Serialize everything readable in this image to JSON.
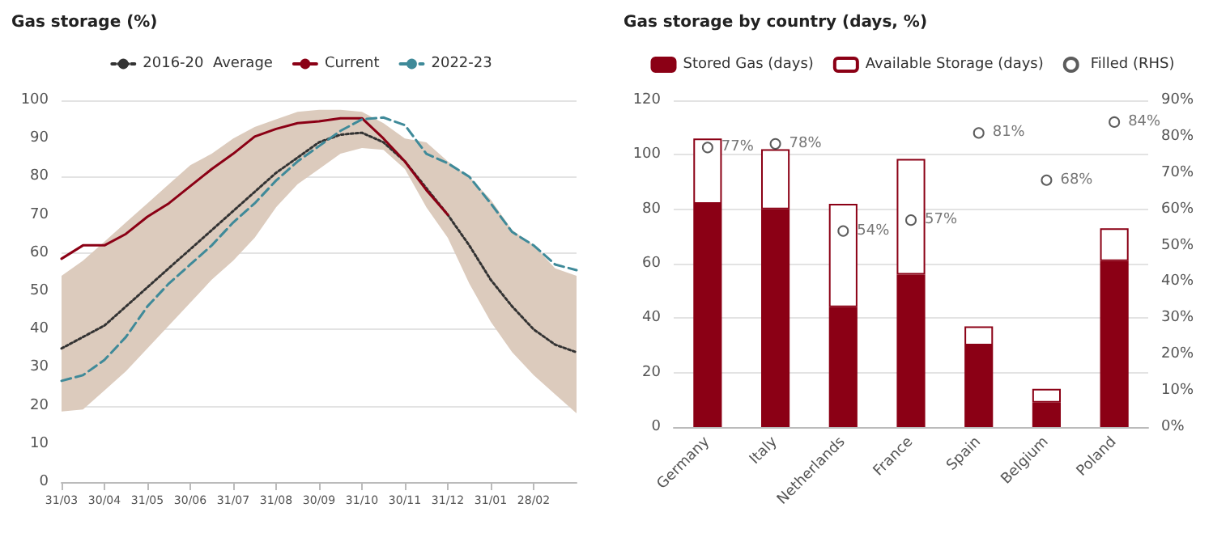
{
  "chart_data": [
    {
      "type": "line",
      "title": "Gas storage (%)",
      "categories": [
        "31/03",
        null,
        "30/04",
        null,
        "31/05",
        null,
        "30/06",
        null,
        "31/07",
        null,
        "31/08",
        null,
        "30/09",
        null,
        "31/10",
        null,
        "30/11",
        null,
        "31/12",
        null,
        "31/01",
        null,
        "28/02",
        null,
        null
      ],
      "ylim": [
        0,
        100
      ],
      "yticks": [
        0,
        10,
        20,
        30,
        40,
        50,
        60,
        70,
        80,
        90,
        100
      ],
      "grid": "y",
      "legend": "top",
      "marker": "none",
      "series": [
        {
          "name": "2016-20  Average",
          "color": "#333333",
          "line_style": "dotted",
          "values": [
            35,
            38,
            41,
            46,
            51,
            56,
            61,
            66,
            71,
            76,
            81,
            85,
            89,
            91,
            91.5,
            89,
            84,
            77,
            70,
            62,
            53,
            46,
            40,
            36,
            34
          ],
          "lower": [
            18.5,
            19,
            24,
            29,
            35,
            41,
            47,
            53,
            58,
            64,
            72,
            78,
            82,
            86,
            87.5,
            87,
            82,
            72,
            64,
            52,
            42,
            34,
            28,
            23,
            18
          ],
          "upper": [
            54,
            58,
            63,
            68,
            73,
            78,
            83,
            86,
            90,
            93,
            95,
            97,
            97.5,
            97.5,
            97,
            94,
            90,
            89,
            84,
            80,
            74,
            66,
            62,
            56,
            54
          ]
        },
        {
          "name": "Current",
          "color": "#8b0015",
          "line_style": "solid",
          "values": [
            58.5,
            62,
            62,
            65,
            69.5,
            73,
            77.5,
            82,
            86,
            90.5,
            92.5,
            94,
            94.5,
            95.3,
            95.3,
            90,
            84,
            76.5,
            70,
            null,
            null,
            null,
            null,
            null,
            null
          ]
        },
        {
          "name": "2022-23",
          "color": "#3f8a99",
          "line_style": "dashed",
          "values": [
            26.5,
            28,
            32,
            38,
            46,
            52,
            57,
            62,
            68,
            73,
            79,
            84,
            88,
            92,
            95,
            95.5,
            93.5,
            86,
            83.5,
            80,
            73,
            65.5,
            62,
            57,
            55.5
          ]
        }
      ]
    },
    {
      "type": "bar",
      "title": "Gas storage by country (days, %)",
      "categories": [
        "Germany",
        "Italy",
        "Netherlands",
        "France",
        "Spain",
        "Belgium",
        "Poland"
      ],
      "stacked": true,
      "ylim": [
        0,
        120
      ],
      "yticks": [
        0,
        20,
        40,
        60,
        80,
        100,
        120
      ],
      "y2lim": [
        0,
        90
      ],
      "y2ticks": [
        {
          "value": 0,
          "label": "0%"
        },
        {
          "value": 10,
          "label": "10%"
        },
        {
          "value": 20,
          "label": "20%"
        },
        {
          "value": 30,
          "label": "30%"
        },
        {
          "value": 40,
          "label": "40%"
        },
        {
          "value": 50,
          "label": "50%"
        },
        {
          "value": 60,
          "label": "60%"
        },
        {
          "value": 70,
          "label": "70%"
        },
        {
          "value": 80,
          "label": "80%"
        },
        {
          "value": 90,
          "label": "90%"
        }
      ],
      "grid": "y",
      "legend": "top",
      "series": [
        {
          "name": "Stored Gas (days)",
          "color": "#8b0015",
          "values": [
            82,
            80,
            44,
            56,
            30,
            9,
            61
          ]
        },
        {
          "name": "Available Storage (days)",
          "color": "#ffffff",
          "values": [
            24,
            22,
            38,
            42.5,
            7,
            5,
            12
          ]
        },
        {
          "name": "Filled (RHS)",
          "type": "scatter",
          "axis": "y2",
          "marker": "circle",
          "color": "#333333",
          "values": [
            77,
            78,
            54,
            57,
            81,
            68,
            84
          ],
          "value_labels": [
            "77%",
            "78%",
            "54%",
            "57%",
            "81%",
            "68%",
            "84%"
          ]
        }
      ]
    }
  ]
}
